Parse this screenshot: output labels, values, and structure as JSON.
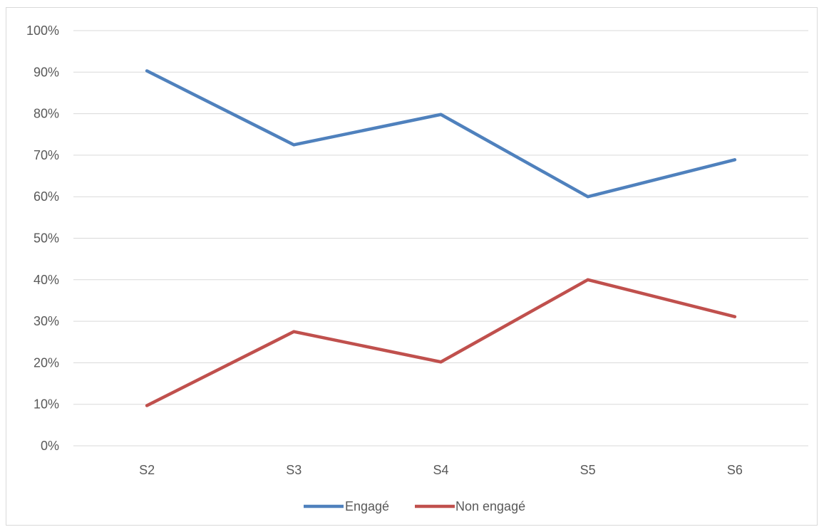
{
  "chart_data": {
    "type": "line",
    "categories": [
      "S2",
      "S3",
      "S4",
      "S5",
      "S6"
    ],
    "y_ticks": [
      "0%",
      "10%",
      "20%",
      "30%",
      "40%",
      "50%",
      "60%",
      "70%",
      "80%",
      "90%",
      "100%"
    ],
    "ylim": [
      0,
      1
    ],
    "grid": true,
    "legend_position": "bottom",
    "series": [
      {
        "name": "Engagé",
        "color": "#4f81bd",
        "values": [
          0.903,
          0.725,
          0.798,
          0.6,
          0.689
        ]
      },
      {
        "name": "Non engagé",
        "color": "#c0504d",
        "values": [
          0.097,
          0.275,
          0.202,
          0.4,
          0.311
        ]
      }
    ]
  }
}
